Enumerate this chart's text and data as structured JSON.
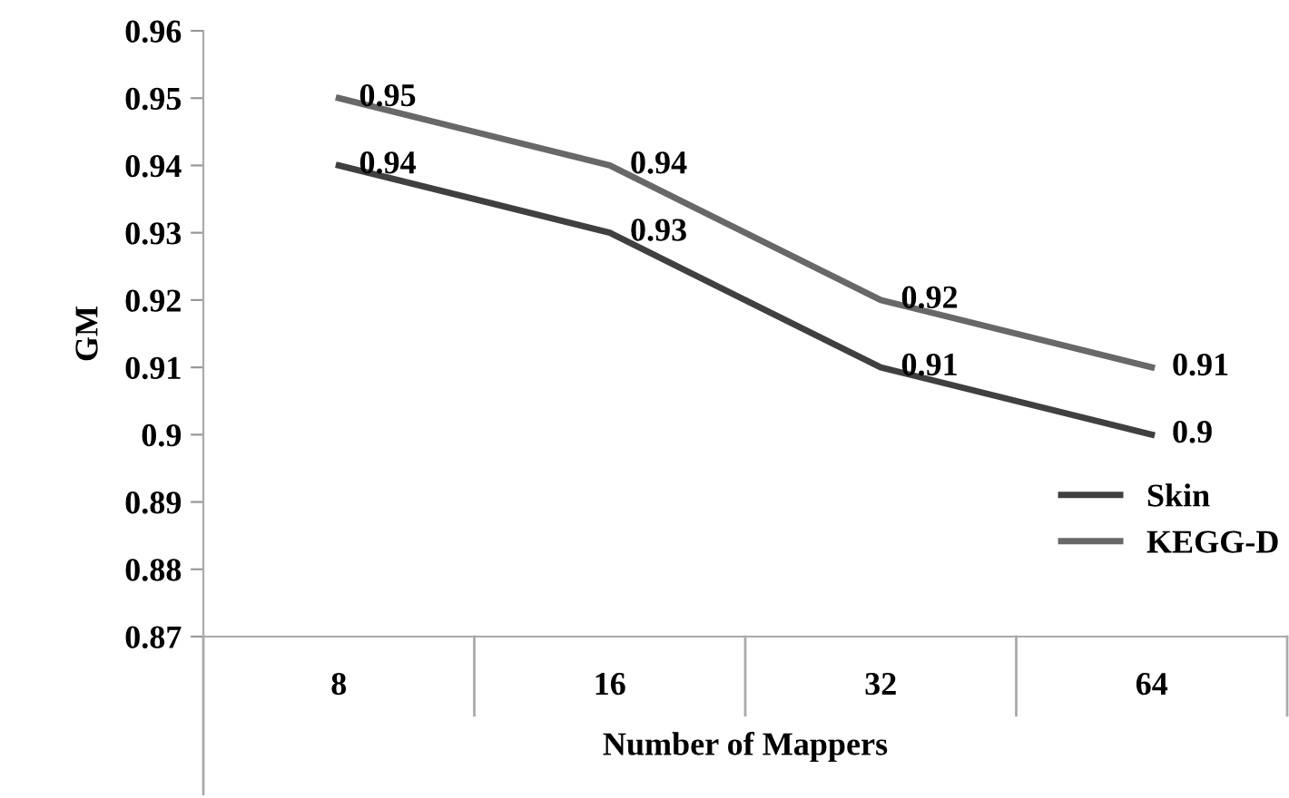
{
  "chart_data": {
    "type": "line",
    "xlabel": "Number of Mappers",
    "ylabel": "GM",
    "categories": [
      "8",
      "16",
      "32",
      "64"
    ],
    "series": [
      {
        "name": "Skin",
        "color": "#404040",
        "values": [
          0.94,
          0.93,
          0.91,
          0.9
        ]
      },
      {
        "name": "KEGG-D",
        "color": "#686868",
        "values": [
          0.95,
          0.94,
          0.92,
          0.91
        ]
      }
    ],
    "ylim": [
      0.87,
      0.96
    ],
    "yticks": [
      0.87,
      0.88,
      0.89,
      0.9,
      0.91,
      0.92,
      0.93,
      0.94,
      0.95,
      0.96
    ],
    "grid": false,
    "legend": "right",
    "data_labels": true,
    "marker": "none",
    "line_style": "solid"
  }
}
